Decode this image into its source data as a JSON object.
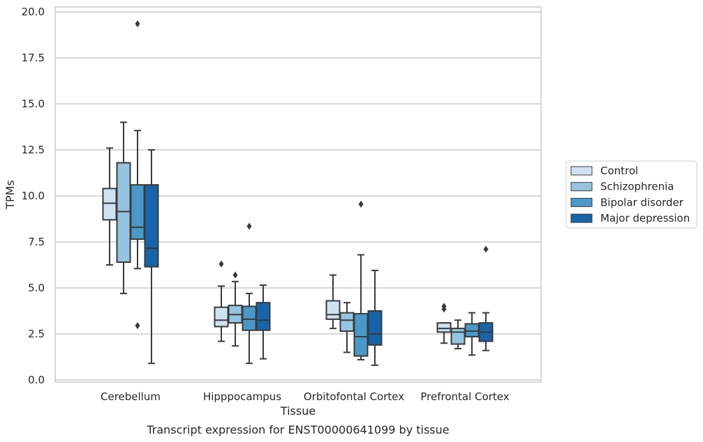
{
  "chart_data": {
    "type": "box",
    "xlabel": "Tissue",
    "ylabel": "TPMs",
    "caption": "Transcript expression for ENST00000641099 by tissue",
    "ylim": [
      0,
      20.3
    ],
    "yticks": [
      "0.0",
      "2.5",
      "5.0",
      "7.5",
      "10.0",
      "12.5",
      "15.0",
      "17.5",
      "20.0"
    ],
    "grid": "horizontal",
    "legend_position": "right",
    "categories": [
      "Cerebellum",
      "Hipppocampus",
      "Orbitofontal Cortex",
      "Prefrontal Cortex"
    ],
    "series": [
      {
        "name": "Control",
        "color": "#d0e1f2",
        "boxes": [
          {
            "low": 6.25,
            "q1": 8.7,
            "median": 9.6,
            "q3": 10.4,
            "high": 12.6,
            "outliers": []
          },
          {
            "low": 2.1,
            "q1": 2.9,
            "median": 3.25,
            "q3": 3.95,
            "high": 5.1,
            "outliers": [
              6.3
            ]
          },
          {
            "low": 2.8,
            "q1": 3.3,
            "median": 3.55,
            "q3": 4.3,
            "high": 5.7,
            "outliers": []
          },
          {
            "low": 2.0,
            "q1": 2.6,
            "median": 2.8,
            "q3": 3.1,
            "high": 3.1,
            "outliers": [
              3.85,
              4.0
            ]
          }
        ]
      },
      {
        "name": "Schizophrenia",
        "color": "#94c4df",
        "boxes": [
          {
            "low": 4.7,
            "q1": 6.4,
            "median": 9.15,
            "q3": 11.8,
            "high": 14.0,
            "outliers": []
          },
          {
            "low": 1.85,
            "q1": 3.1,
            "median": 3.55,
            "q3": 4.05,
            "high": 5.35,
            "outliers": [
              5.7
            ]
          },
          {
            "low": 1.5,
            "q1": 2.65,
            "median": 3.25,
            "q3": 3.65,
            "high": 4.2,
            "outliers": []
          },
          {
            "low": 1.7,
            "q1": 1.95,
            "median": 2.6,
            "q3": 2.8,
            "high": 3.25,
            "outliers": []
          }
        ]
      },
      {
        "name": "Bipolar disorder",
        "color": "#4a98c9",
        "boxes": [
          {
            "low": 6.05,
            "q1": 7.65,
            "median": 8.3,
            "q3": 10.6,
            "high": 13.55,
            "outliers": [
              19.35,
              2.95
            ]
          },
          {
            "low": 0.9,
            "q1": 2.7,
            "median": 3.3,
            "q3": 4.0,
            "high": 4.7,
            "outliers": [
              8.35
            ]
          },
          {
            "low": 1.1,
            "q1": 1.3,
            "median": 2.35,
            "q3": 3.6,
            "high": 6.8,
            "outliers": [
              9.55
            ]
          },
          {
            "low": 1.35,
            "q1": 2.35,
            "median": 2.65,
            "q3": 3.05,
            "high": 3.65,
            "outliers": []
          }
        ]
      },
      {
        "name": "Major depression",
        "color": "#1764ab",
        "boxes": [
          {
            "low": 0.9,
            "q1": 6.15,
            "median": 7.15,
            "q3": 10.6,
            "high": 12.5,
            "outliers": []
          },
          {
            "low": 1.15,
            "q1": 2.7,
            "median": 3.25,
            "q3": 4.2,
            "high": 5.15,
            "outliers": []
          },
          {
            "low": 0.8,
            "q1": 1.9,
            "median": 2.5,
            "q3": 3.75,
            "high": 5.95,
            "outliers": []
          },
          {
            "low": 1.6,
            "q1": 2.1,
            "median": 2.6,
            "q3": 3.1,
            "high": 3.65,
            "outliers": [
              7.1
            ]
          }
        ]
      }
    ]
  }
}
